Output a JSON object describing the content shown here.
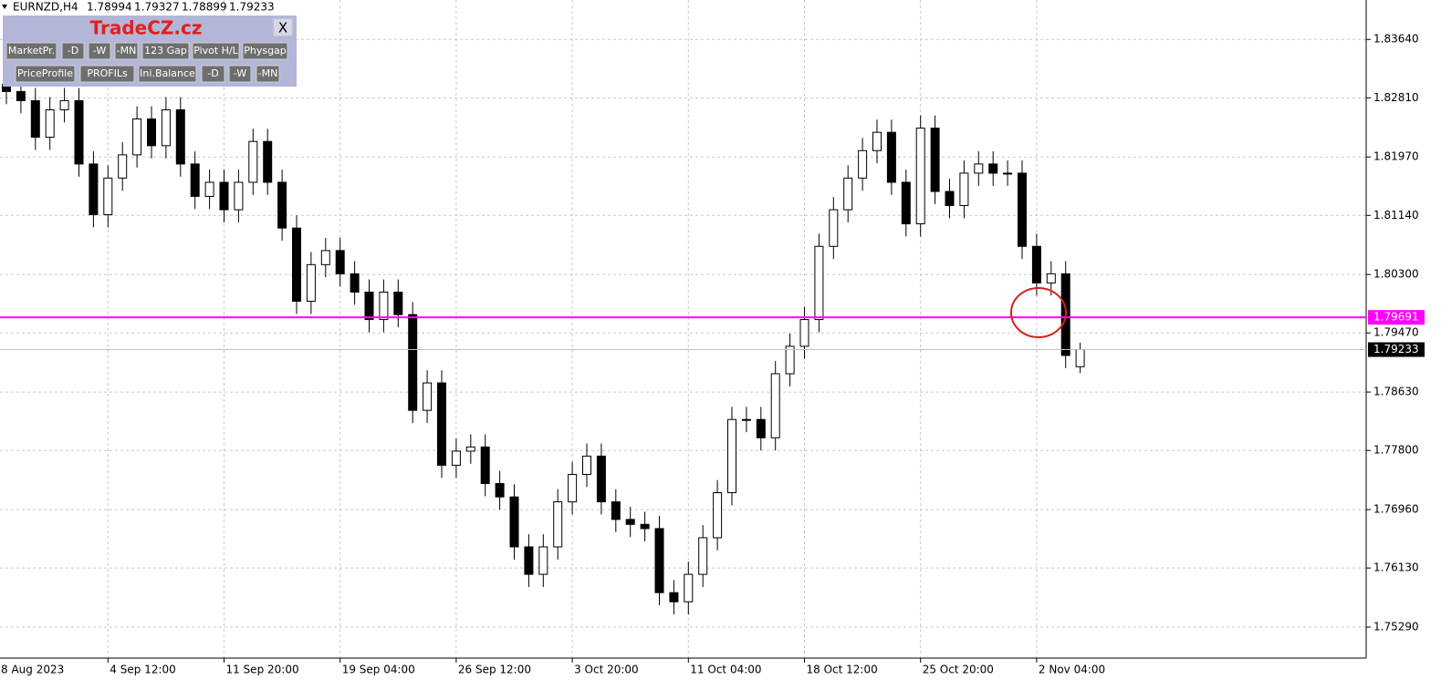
{
  "header": {
    "symbol": "EURNZD,H4",
    "ohlc": [
      1.78994,
      1.79327,
      1.78899,
      1.79233
    ]
  },
  "panel": {
    "brand": "TradeCZ.cz",
    "close": "X",
    "row1": [
      "MarketPr.",
      "-D",
      "-W",
      "-MN",
      "123 Gap",
      "Pivot H/L",
      "Physgap"
    ],
    "row2": [
      "PriceProfile",
      "PROFILs",
      "Ini.Balance",
      "-D",
      "-W",
      "-MN"
    ]
  },
  "chart_data": {
    "type": "candlestick",
    "open": [
      1.83,
      1.829,
      1.8277,
      1.8225,
      1.8264,
      1.8277,
      1.8187,
      1.8115,
      1.8167,
      1.82,
      1.8251,
      1.8213,
      1.8264,
      1.8187,
      1.8141,
      1.8161,
      1.8122,
      1.8161,
      1.8219,
      1.8161,
      1.8096,
      1.7992,
      1.8044,
      1.8064,
      1.8031,
      1.8005,
      1.7966,
      1.8005,
      1.7973,
      1.7837,
      1.7876,
      1.7759,
      1.7779,
      1.7785,
      1.7733,
      1.7714,
      1.7643,
      1.7604,
      1.7643,
      1.7707,
      1.7746,
      1.7772,
      1.7707,
      1.7682,
      1.7675,
      1.7669,
      1.7578,
      1.7565,
      1.7604,
      1.7656,
      1.772,
      1.7824,
      1.7824,
      1.7798,
      1.7889,
      1.7928,
      1.7966,
      1.807,
      1.8122,
      1.8167,
      1.8206,
      1.8232,
      1.8161,
      1.8102,
      1.8238,
      1.8148,
      1.8128,
      1.8174,
      1.8187,
      1.8174,
      1.8174,
      1.807,
      1.8018,
      1.8031,
      1.7899
    ],
    "high": [
      1.8318,
      1.8308,
      1.8295,
      1.8282,
      1.8295,
      1.8295,
      1.8205,
      1.8185,
      1.8218,
      1.8269,
      1.8269,
      1.8282,
      1.8282,
      1.8205,
      1.8179,
      1.8179,
      1.8179,
      1.8237,
      1.8237,
      1.8179,
      1.8114,
      1.8062,
      1.8082,
      1.8082,
      1.8049,
      1.8023,
      1.8023,
      1.8023,
      1.7991,
      1.7894,
      1.7894,
      1.7797,
      1.7803,
      1.7803,
      1.7751,
      1.7732,
      1.7661,
      1.7661,
      1.7725,
      1.7764,
      1.779,
      1.779,
      1.7725,
      1.77,
      1.7693,
      1.7687,
      1.7596,
      1.7622,
      1.7674,
      1.7738,
      1.7842,
      1.7842,
      1.7842,
      1.7907,
      1.7946,
      1.7984,
      1.8088,
      1.814,
      1.8185,
      1.8224,
      1.825,
      1.825,
      1.8179,
      1.8256,
      1.8256,
      1.8166,
      1.8192,
      1.8205,
      1.8205,
      1.8192,
      1.8192,
      1.8088,
      1.8049,
      1.8049,
      1.7933
    ],
    "low": [
      1.8272,
      1.8259,
      1.8207,
      1.8207,
      1.8246,
      1.8169,
      1.8097,
      1.8097,
      1.8149,
      1.8182,
      1.8195,
      1.8195,
      1.8169,
      1.8123,
      1.8123,
      1.8104,
      1.8104,
      1.8143,
      1.8143,
      1.8078,
      1.7974,
      1.7974,
      1.8026,
      1.8013,
      1.7987,
      1.7948,
      1.7948,
      1.7955,
      1.7819,
      1.7819,
      1.7741,
      1.7741,
      1.7761,
      1.7715,
      1.7696,
      1.7625,
      1.7586,
      1.7586,
      1.7625,
      1.7689,
      1.7728,
      1.7689,
      1.7664,
      1.7657,
      1.7651,
      1.756,
      1.7547,
      1.7547,
      1.7586,
      1.7638,
      1.7702,
      1.7806,
      1.778,
      1.778,
      1.7871,
      1.791,
      1.7948,
      1.8052,
      1.8104,
      1.8149,
      1.8188,
      1.8143,
      1.8084,
      1.8084,
      1.813,
      1.811,
      1.811,
      1.8156,
      1.8156,
      1.8156,
      1.8052,
      1.8,
      1.8,
      1.7897,
      1.789
    ],
    "close": [
      1.829,
      1.8277,
      1.8225,
      1.8264,
      1.8277,
      1.8187,
      1.8115,
      1.8167,
      1.82,
      1.8251,
      1.8213,
      1.8264,
      1.8187,
      1.8141,
      1.8161,
      1.8122,
      1.8161,
      1.8219,
      1.8161,
      1.8096,
      1.7992,
      1.8044,
      1.8064,
      1.8031,
      1.8005,
      1.7966,
      1.8005,
      1.7973,
      1.7837,
      1.7876,
      1.7759,
      1.7779,
      1.7785,
      1.7733,
      1.7714,
      1.7643,
      1.7604,
      1.7643,
      1.7707,
      1.7746,
      1.7772,
      1.7707,
      1.7682,
      1.7675,
      1.7669,
      1.7578,
      1.7565,
      1.7604,
      1.7656,
      1.772,
      1.7824,
      1.7824,
      1.7798,
      1.7889,
      1.7928,
      1.7966,
      1.807,
      1.8122,
      1.8167,
      1.8206,
      1.8232,
      1.8161,
      1.8102,
      1.8238,
      1.8148,
      1.8128,
      1.8174,
      1.8187,
      1.8174,
      1.8174,
      1.807,
      1.8018,
      1.8031,
      1.7915,
      1.79233
    ],
    "xlim": [
      -0.44,
      93.71
    ],
    "xticks": [
      {
        "value": -1,
        "label": "8 Aug 2023"
      },
      {
        "value": 7,
        "label": "4 Sep 12:00"
      },
      {
        "value": 15,
        "label": "11 Sep 20:00"
      },
      {
        "value": 23,
        "label": "19 Sep 04:00"
      },
      {
        "value": 31,
        "label": "26 Sep 12:00"
      },
      {
        "value": 39,
        "label": "3 Oct 20:00"
      },
      {
        "value": 47,
        "label": "11 Oct 04:00"
      },
      {
        "value": 55,
        "label": "18 Oct 12:00"
      },
      {
        "value": 63,
        "label": "25 Oct 20:00"
      },
      {
        "value": 71,
        "label": "2 Nov 04:00"
      }
    ],
    "ylim": [
      1.7485,
      1.842
    ],
    "yticks": [
      {
        "value": 1.8364,
        "label": "1.83640"
      },
      {
        "value": 1.8281,
        "label": "1.82810"
      },
      {
        "value": 1.8197,
        "label": "1.81970"
      },
      {
        "value": 1.8114,
        "label": "1.81140"
      },
      {
        "value": 1.803,
        "label": "1.80300"
      },
      {
        "value": 1.7947,
        "label": "1.79470"
      },
      {
        "value": 1.7863,
        "label": "1.78630"
      },
      {
        "value": 1.778,
        "label": "1.77800"
      },
      {
        "value": 1.7696,
        "label": "1.76960"
      },
      {
        "value": 1.7613,
        "label": "1.76130"
      },
      {
        "value": 1.7529,
        "label": "1.75290"
      }
    ],
    "grid": true,
    "hlines": [
      {
        "value": 1.79691,
        "color": "#ff00ff",
        "tag_color": "#ff00ff"
      },
      {
        "value": 1.79233,
        "color": "#c0c0c0",
        "tag_color": "#000000"
      }
    ]
  }
}
